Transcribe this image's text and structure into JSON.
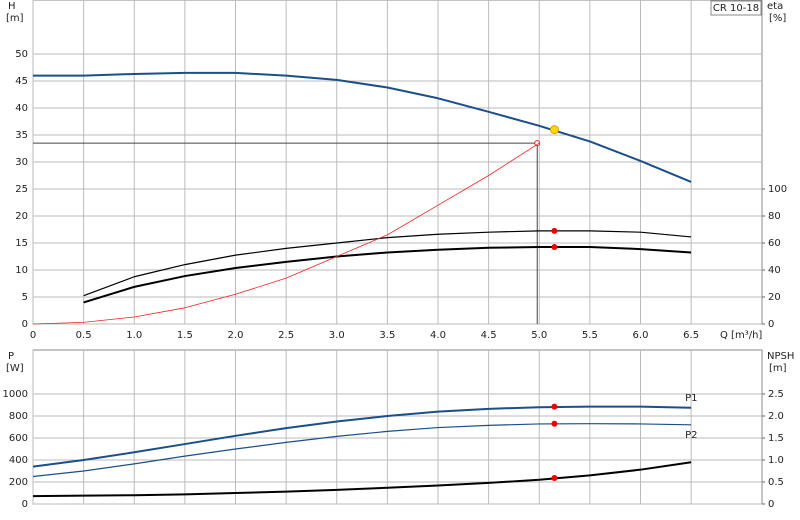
{
  "chart_data": [
    {
      "type": "line",
      "ylabel": "H",
      "yunit": "[m]",
      "y2label": "eta",
      "y2unit": "[%]",
      "xlabel": "Q [m³/h]",
      "tag": "CR 10-18",
      "x": [
        0,
        0.5,
        1,
        1.5,
        2,
        2.5,
        3,
        3.5,
        4,
        4.5,
        5,
        5.5,
        6,
        6.5
      ],
      "xlim": [
        0,
        7.2
      ],
      "xticks": [
        0,
        0.5,
        {
          "value": 1,
          "label": "1.0"
        },
        1.5,
        {
          "value": 2,
          "label": "2.0"
        },
        2.5,
        {
          "value": 3,
          "label": "3.0"
        },
        3.5,
        {
          "value": 4,
          "label": "4.0"
        },
        4.5,
        {
          "value": 5,
          "label": "5.0"
        },
        5.5,
        {
          "value": 6,
          "label": "6.0"
        },
        6.5
      ],
      "ylim": [
        0,
        60
      ],
      "yticks": [
        0,
        5,
        10,
        15,
        20,
        25,
        30,
        35,
        40,
        45,
        50
      ],
      "y2lim": [
        0,
        240
      ],
      "y2ticks": [
        0,
        20,
        40,
        60,
        80,
        100
      ],
      "grid": true,
      "series": [
        {
          "color": "#1a4f8a",
          "axis": "y",
          "values": [
            46,
            46,
            46.3,
            46.5,
            46.5,
            46,
            45.2,
            43.8,
            41.8,
            39.3,
            36.7,
            33.8,
            30.2,
            26.3
          ]
        },
        {
          "color": "#000000",
          "axis": "y2",
          "values": [
            null,
            21,
            35,
            44,
            51,
            56,
            60,
            64,
            66.5,
            68,
            69,
            69,
            68,
            64.5
          ]
        },
        {
          "color": "#000000",
          "axis": "y2",
          "values": [
            null,
            16,
            27.5,
            35.5,
            41.5,
            46,
            50,
            53,
            55,
            56.5,
            57,
            57,
            55.5,
            53
          ]
        },
        {
          "color": "#ee2222",
          "axis": "y",
          "values": [
            0,
            0.3,
            1.3,
            3,
            5.5,
            8.5,
            12.5,
            16.5,
            22,
            27.5,
            33.5,
            null,
            null,
            null
          ]
        }
      ],
      "duty_lines": {
        "x": 4.98,
        "y": 33.5,
        "color": "#444444"
      },
      "markers": [
        {
          "x": 5.15,
          "y": 36,
          "axis": "y",
          "color": "#ffd700"
        },
        {
          "x": 5.15,
          "y": 69,
          "axis": "y2",
          "color": "#ee0000"
        },
        {
          "x": 5.15,
          "y": 57,
          "axis": "y2",
          "color": "#ee0000"
        }
      ]
    },
    {
      "type": "line",
      "ylabel": "P",
      "yunit": "[W]",
      "y2label": "NPSH",
      "y2unit": "[m]",
      "x": [
        0,
        0.5,
        1,
        1.5,
        2,
        2.5,
        3,
        3.5,
        4,
        4.5,
        5,
        5.5,
        6,
        6.5
      ],
      "xlim": [
        0,
        7.2
      ],
      "ylim": [
        0,
        1400
      ],
      "yticks": [
        0,
        200,
        400,
        600,
        800,
        1000
      ],
      "y2lim": [
        0,
        3.5
      ],
      "y2ticks": [
        0,
        0.5,
        {
          "value": 1,
          "label": "1.0"
        },
        1.5,
        {
          "value": 2,
          "label": "2.0"
        },
        2.5
      ],
      "grid": true,
      "series": [
        {
          "name": "P1",
          "color": "#1a4f8a",
          "axis": "y",
          "values": [
            340,
            400,
            470,
            545,
            620,
            690,
            750,
            800,
            840,
            865,
            880,
            885,
            885,
            875
          ]
        },
        {
          "name": "P2",
          "color": "#1a4f8a",
          "axis": "y",
          "values": [
            250,
            300,
            365,
            435,
            500,
            560,
            615,
            660,
            695,
            715,
            728,
            730,
            728,
            720
          ]
        },
        {
          "color": "#000000",
          "axis": "y2",
          "values": [
            0.18,
            0.19,
            0.2,
            0.22,
            0.25,
            0.28,
            0.32,
            0.37,
            0.42,
            0.48,
            0.55,
            0.65,
            0.78,
            0.95
          ]
        }
      ],
      "markers": [
        {
          "x": 5.15,
          "y": 885,
          "axis": "y",
          "color": "#ee0000"
        },
        {
          "x": 5.15,
          "y": 730,
          "axis": "y",
          "color": "#ee0000"
        },
        {
          "x": 5.15,
          "y": 0.59,
          "axis": "y2",
          "color": "#ee0000"
        }
      ]
    }
  ]
}
